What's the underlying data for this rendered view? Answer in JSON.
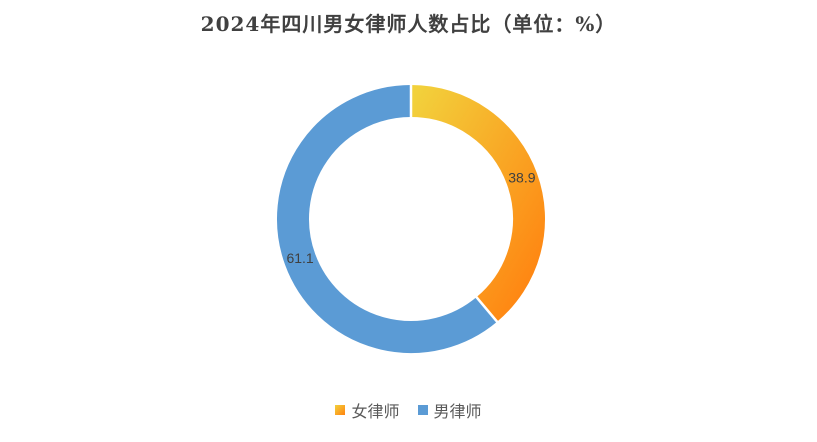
{
  "chart_data": {
    "type": "pie",
    "title": "2024年四川男女律师人数占比（单位：%）",
    "categories": [
      "女律师",
      "男律师"
    ],
    "values": [
      38.9,
      61.1
    ],
    "value_labels": [
      "38.9",
      "61.1"
    ],
    "donut": true,
    "legend_position": "bottom",
    "colors": {
      "女律师": {
        "from": "#F2D13C",
        "to": "#FF8210"
      },
      "男律师": "#5B9BD5"
    }
  }
}
